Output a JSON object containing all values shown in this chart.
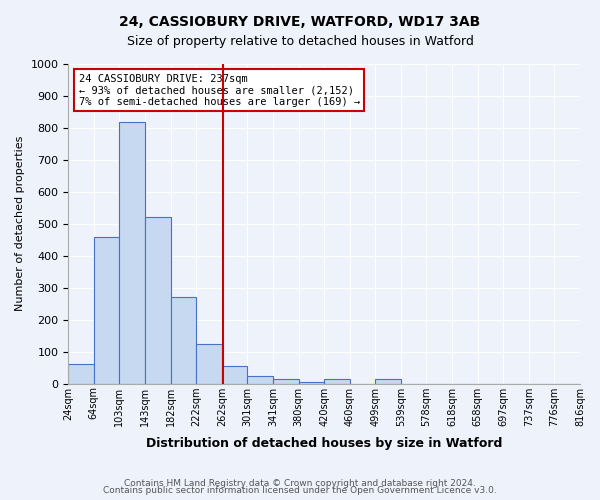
{
  "title1": "24, CASSIOBURY DRIVE, WATFORD, WD17 3AB",
  "title2": "Size of property relative to detached houses in Watford",
  "xlabel": "Distribution of detached houses by size in Watford",
  "ylabel": "Number of detached properties",
  "bin_labels": [
    "24sqm",
    "64sqm",
    "103sqm",
    "143sqm",
    "182sqm",
    "222sqm",
    "262sqm",
    "301sqm",
    "341sqm",
    "380sqm",
    "420sqm",
    "460sqm",
    "499sqm",
    "539sqm",
    "578sqm",
    "618sqm",
    "658sqm",
    "697sqm",
    "737sqm",
    "776sqm",
    "816sqm"
  ],
  "bar_heights": [
    60,
    460,
    820,
    520,
    270,
    125,
    55,
    25,
    15,
    5,
    15,
    0,
    15,
    0,
    0,
    0,
    0,
    0,
    0,
    0
  ],
  "bar_color": "#c6d9f0",
  "bar_edge_color": "#4472c4",
  "vline_x": 5.54,
  "vline_color": "#cc0000",
  "annotation_line1": "24 CASSIOBURY DRIVE: 237sqm",
  "annotation_line2": "← 93% of detached houses are smaller (2,152)",
  "annotation_line3": "7% of semi-detached houses are larger (169) →",
  "annotation_box_color": "#ffffff",
  "annotation_box_edge": "#cc0000",
  "ylim": [
    0,
    1000
  ],
  "yticks": [
    0,
    100,
    200,
    300,
    400,
    500,
    600,
    700,
    800,
    900,
    1000
  ],
  "footer1": "Contains HM Land Registry data © Crown copyright and database right 2024.",
  "footer2": "Contains public sector information licensed under the Open Government Licence v3.0.",
  "bg_color": "#eef2fb",
  "plot_bg_color": "#eef2fb"
}
